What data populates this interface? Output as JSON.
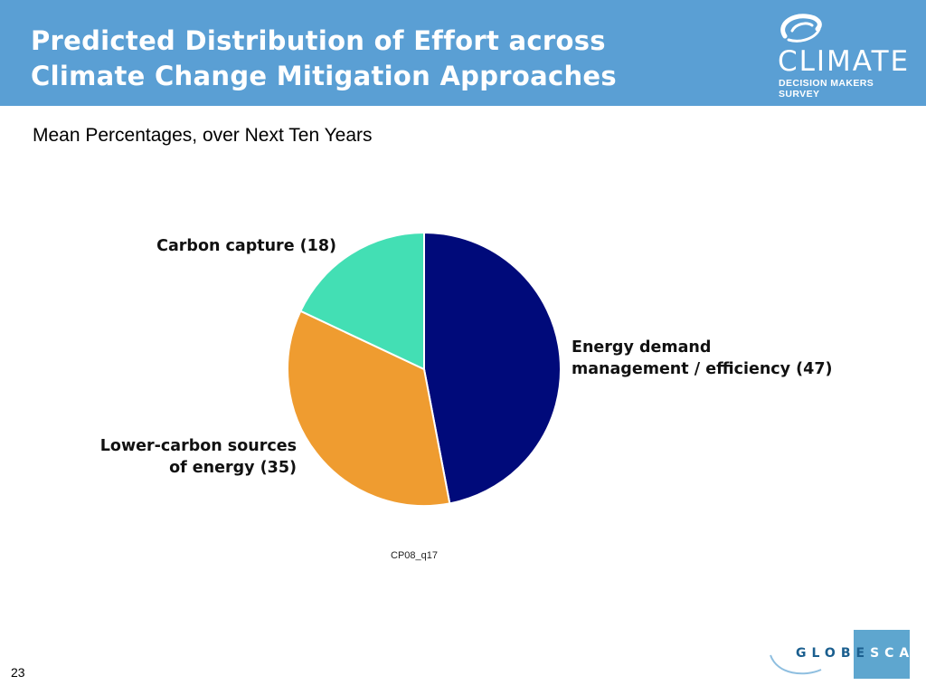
{
  "header": {
    "title_line1": "Predicted Distribution of Effort across",
    "title_line2": "Climate Change Mitigation Approaches",
    "bg_color": "#5a9fd4"
  },
  "logo": {
    "word": "CLIMATE",
    "subtitle": "DECISION MAKERS SURVEY",
    "icon": "globe-swirl-icon"
  },
  "subtitle": "Mean Percentages, over Next Ten Years",
  "chart_data": {
    "type": "pie",
    "start_angle_deg": 0,
    "direction": "clockwise",
    "slices": [
      {
        "label_line1": "Energy demand",
        "label_line2": "management / efficiency (47)",
        "value": 47,
        "color": "#000a7a"
      },
      {
        "label_line1": "Lower-carbon sources",
        "label_line2": "of energy (35)",
        "value": 35,
        "color": "#ef9c30"
      },
      {
        "label_line1": "Carbon capture (18)",
        "label_line2": "",
        "value": 18,
        "color": "#43dfb4"
      }
    ]
  },
  "source_code": "CP08_q17",
  "page_number": "23",
  "footer_logo": {
    "text_dark": "GLOBE",
    "text_light": "SCAN",
    "color": "#1b5f8f",
    "box_color": "#5ea6cf"
  }
}
